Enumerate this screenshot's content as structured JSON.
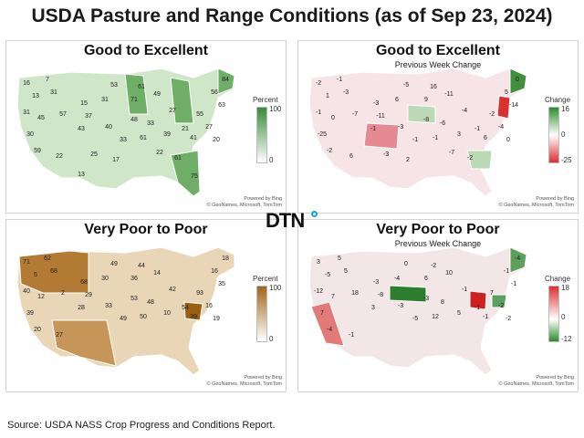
{
  "title": "USDA Pasture and Range Conditions (as of Sep 23, 2024)",
  "source": "Source:  USDA NASS Crop Progress and Conditions Report.",
  "logo_text": "DTN",
  "attribution": {
    "line1": "Powered by Bing",
    "line2": "© GeoNames, Microsoft, TomTom"
  },
  "panels": [
    {
      "title": "Good to Excellent",
      "subtitle": "",
      "legend": {
        "label": "Percent",
        "max": "100",
        "mid": "",
        "min": "0",
        "colors": [
          "#ffffff",
          "#3a8a3a"
        ]
      },
      "values": [
        "16",
        "7",
        "84",
        "13",
        "31",
        "53",
        "61",
        "56",
        "31",
        "15",
        "31",
        "49",
        "63",
        "45",
        "57",
        "37",
        "71",
        "27",
        "55",
        "30",
        "43",
        "40",
        "48",
        "33",
        "21",
        "27",
        "59",
        "33",
        "61",
        "39",
        "41",
        "20",
        "22",
        "25",
        "17",
        "22",
        "61",
        "75",
        "13"
      ]
    },
    {
      "title": "Good to Excellent",
      "subtitle": "Previous Week Change",
      "legend": {
        "label": "Change",
        "max": "16",
        "mid": "0",
        "min": "-25",
        "colors": [
          "#d93030",
          "#ffffff",
          "#2e8b2e"
        ]
      },
      "values": [
        "-2",
        "-1",
        "0",
        "1",
        "-3",
        "-5",
        "16",
        "5",
        "-1",
        "-3",
        "6",
        "-11",
        "-14",
        "0",
        "-7",
        "-11",
        "9",
        "-4",
        "-2",
        "-25",
        "-1",
        "-3",
        "-8",
        "-6",
        "-1",
        "-4",
        "-2",
        "-1",
        "-1",
        "3",
        "6",
        "0",
        "6",
        "-3",
        "2",
        "-7",
        "-2"
      ]
    },
    {
      "title": "Very Poor to Poor",
      "subtitle": "",
      "legend": {
        "label": "Percent",
        "max": "100",
        "mid": "",
        "min": "0",
        "colors": [
          "#ffffff",
          "#a0661a"
        ]
      },
      "values": [
        "71",
        "62",
        "18",
        "5",
        "68",
        "49",
        "44",
        "16",
        "40",
        "68",
        "30",
        "14",
        "35",
        "12",
        "2",
        "29",
        "36",
        "42",
        "93",
        "39",
        "28",
        "33",
        "53",
        "48",
        "54",
        "16",
        "20",
        "49",
        "50",
        "10",
        "39",
        "19",
        "27"
      ]
    },
    {
      "title": "Very Poor to Poor",
      "subtitle": "Previous Week Change",
      "legend": {
        "label": "Change",
        "max": "18",
        "mid": "0",
        "min": "-12",
        "colors": [
          "#2e8b2e",
          "#ffffff",
          "#d93030"
        ]
      },
      "values": [
        "3",
        "5",
        "-4",
        "-5",
        "5",
        "0",
        "-2",
        "-1",
        "-12",
        "-3",
        "-4",
        "10",
        "-1",
        "7",
        "18",
        "-8",
        "6",
        "-1",
        "7",
        "7",
        "3",
        "-3",
        "-3",
        "8",
        "-1",
        "-2",
        "-4",
        "-5",
        "12",
        "5",
        "-1",
        "-2",
        "-1"
      ]
    }
  ]
}
